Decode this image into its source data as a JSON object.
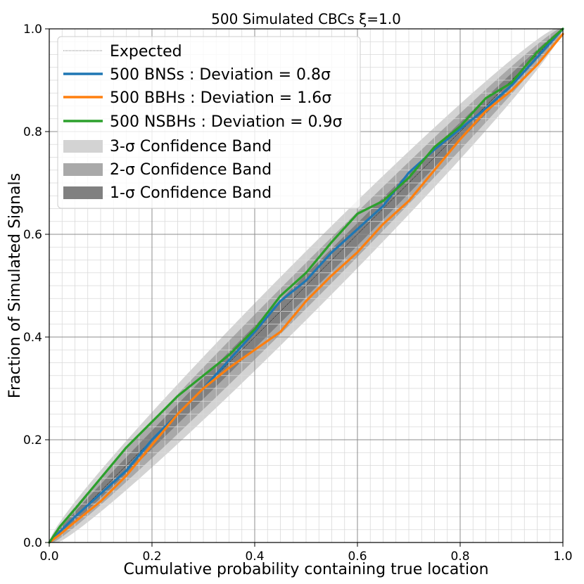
{
  "chart_data": {
    "type": "line",
    "title": "500 Simulated CBCs ξ=1.0",
    "xlabel": "Cumulative probability containing true location",
    "ylabel": "Fraction of Simulated Signals",
    "xlim": [
      0.0,
      1.0
    ],
    "ylim": [
      0.0,
      1.0
    ],
    "xticks": [
      "0.0",
      "0.2",
      "0.4",
      "0.6",
      "0.8",
      "1.0"
    ],
    "yticks": [
      "0.0",
      "0.2",
      "0.4",
      "0.6",
      "0.8",
      "1.0"
    ],
    "major_grid": true,
    "minor_grid": true,
    "legend_position": "top-left",
    "n_samples": 500,
    "bands": [
      {
        "name": "3-σ Confidence Band",
        "sigma": 3,
        "color": "#d3d3d3"
      },
      {
        "name": "2-σ Confidence Band",
        "sigma": 2,
        "color": "#a9a9a9"
      },
      {
        "name": "1-σ Confidence Band",
        "sigma": 1,
        "color": "#808080"
      }
    ],
    "expected": {
      "name": "Expected",
      "x": [
        0.0,
        1.0
      ],
      "y": [
        0.0,
        1.0
      ],
      "color": "#000000"
    },
    "series": [
      {
        "name": "500 BNSs : Deviation = 0.8σ",
        "color": "#1f77b4",
        "x": [
          0.0,
          0.02,
          0.05,
          0.1,
          0.15,
          0.2,
          0.25,
          0.3,
          0.35,
          0.4,
          0.45,
          0.5,
          0.55,
          0.6,
          0.65,
          0.7,
          0.75,
          0.8,
          0.85,
          0.9,
          0.95,
          1.0
        ],
        "y": [
          0.0,
          0.02,
          0.05,
          0.095,
          0.14,
          0.2,
          0.25,
          0.3,
          0.355,
          0.41,
          0.47,
          0.51,
          0.565,
          0.61,
          0.655,
          0.72,
          0.765,
          0.805,
          0.845,
          0.89,
          0.945,
          1.0
        ]
      },
      {
        "name": "500 BBHs : Deviation = 1.6σ",
        "color": "#ff7f0e",
        "x": [
          0.0,
          0.02,
          0.05,
          0.1,
          0.15,
          0.2,
          0.25,
          0.3,
          0.35,
          0.4,
          0.45,
          0.5,
          0.55,
          0.6,
          0.65,
          0.7,
          0.75,
          0.8,
          0.85,
          0.9,
          0.95,
          1.0
        ],
        "y": [
          0.0,
          0.015,
          0.04,
          0.08,
          0.13,
          0.19,
          0.25,
          0.3,
          0.34,
          0.375,
          0.41,
          0.47,
          0.52,
          0.565,
          0.62,
          0.665,
          0.725,
          0.785,
          0.84,
          0.88,
          0.93,
          0.99
        ]
      },
      {
        "name": "500 NSBHs : Deviation = 0.9σ",
        "color": "#2ca02c",
        "x": [
          0.0,
          0.02,
          0.05,
          0.1,
          0.15,
          0.2,
          0.25,
          0.3,
          0.35,
          0.4,
          0.45,
          0.5,
          0.55,
          0.6,
          0.65,
          0.7,
          0.75,
          0.8,
          0.85,
          0.9,
          0.95,
          1.0
        ],
        "y": [
          0.0,
          0.03,
          0.065,
          0.125,
          0.185,
          0.235,
          0.285,
          0.325,
          0.365,
          0.415,
          0.48,
          0.525,
          0.585,
          0.64,
          0.665,
          0.71,
          0.77,
          0.81,
          0.865,
          0.895,
          0.955,
          1.0
        ]
      }
    ]
  }
}
